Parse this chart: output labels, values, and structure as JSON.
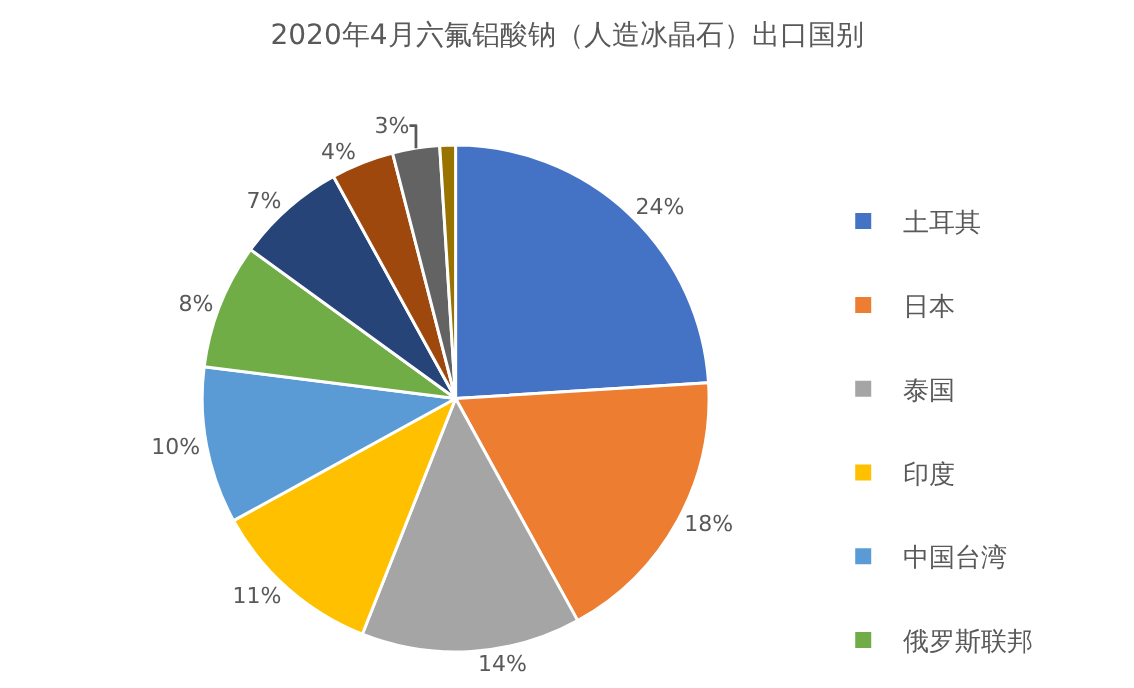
{
  "chart_data": {
    "type": "pie",
    "title": "2020年4月六氟铝酸钠（人造冰晶石）出口国别",
    "categories": [
      "土耳其",
      "日本",
      "泰国",
      "印度",
      "中国台湾",
      "俄罗斯联邦",
      null,
      null,
      null,
      null
    ],
    "values": [
      24,
      18,
      14,
      11,
      10,
      8,
      7,
      4,
      3,
      1
    ],
    "value_labels": [
      "24%",
      "18%",
      "14%",
      "11%",
      "10%",
      "8%",
      "7%",
      "4%",
      "3%",
      null
    ],
    "colors": [
      "#4472c4",
      "#ed7d31",
      "#a5a5a5",
      "#ffc000",
      "#5b9bd5",
      "#70ad47",
      "#264478",
      "#9e480e",
      "#636363",
      "#997300"
    ],
    "legend": "right"
  }
}
